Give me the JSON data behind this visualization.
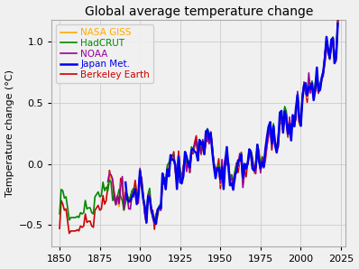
{
  "title": "Global average temperature change",
  "ylabel": "Temperature change (°C)",
  "xlim": [
    1845,
    2028
  ],
  "ylim": [
    -0.68,
    1.18
  ],
  "xticks": [
    1850,
    1875,
    1900,
    1925,
    1950,
    1975,
    2000,
    2025
  ],
  "yticks": [
    -0.5,
    0.0,
    0.5,
    1.0
  ],
  "bg_color": "#f0f0f0",
  "axes_bg": "#f0f0f0",
  "grid_color": "#cccccc",
  "series": [
    {
      "label": "NASA GISS",
      "color": "#ffaa00",
      "lw": 1.2,
      "zorder": 4
    },
    {
      "label": "HadCRUT",
      "color": "#008800",
      "lw": 1.2,
      "zorder": 5
    },
    {
      "label": "NOAA",
      "color": "#990099",
      "lw": 1.2,
      "zorder": 6
    },
    {
      "label": "Japan Met.",
      "color": "#0000ee",
      "lw": 1.8,
      "zorder": 7
    },
    {
      "label": "Berkeley Earth",
      "color": "#cc0000",
      "lw": 1.2,
      "zorder": 3
    }
  ],
  "legend_colors": [
    "#ffaa00",
    "#008800",
    "#990099",
    "#0000ee",
    "#cc0000"
  ],
  "title_fontsize": 10,
  "label_fontsize": 8,
  "tick_fontsize": 8,
  "legend_fontsize": 7.5
}
